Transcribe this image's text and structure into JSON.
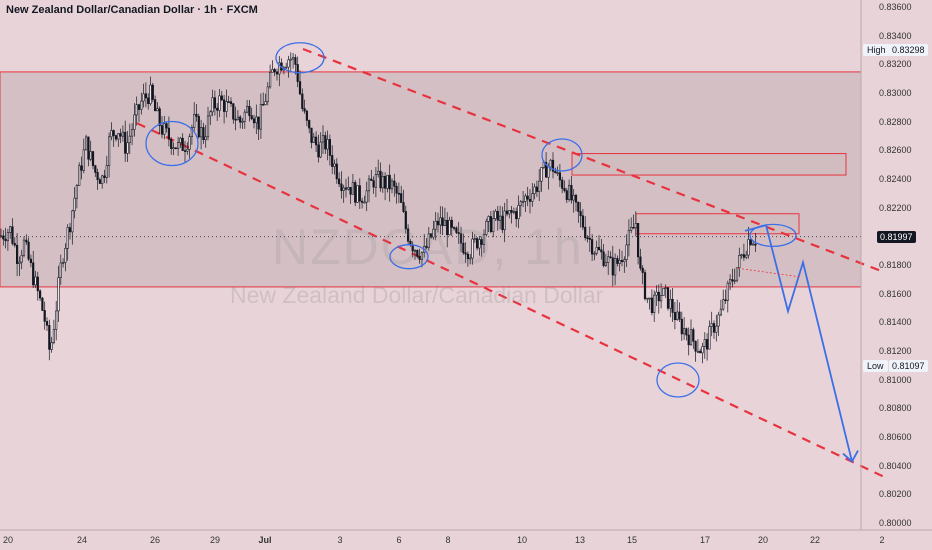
{
  "header": {
    "title": "New Zealand Dollar/Canadian Dollar · 1h · FXCM"
  },
  "watermark": {
    "symbol": "NZDCAD, 1h",
    "name": "New Zealand Dollar/Canadian Dollar"
  },
  "price_tags": {
    "high_label": "High",
    "high_value": "0.83298",
    "low_label": "Low",
    "low_value": "0.81097",
    "current_value": "0.81997"
  },
  "colors": {
    "background": "#e8d4d8",
    "zone": "#cdb9bd",
    "zone_border": "#e8333f",
    "trend_line": "#e8333f",
    "projection": "#3b6fe8",
    "candle_up": "#131722",
    "candle_down": "#131722",
    "current_tag": "#131722"
  },
  "chart_data": {
    "type": "candlestick",
    "symbol": "NZDCAD",
    "timeframe": "1h",
    "ylim": [
      0.7995,
      0.8365
    ],
    "y_ticks": [
      "0.80000",
      "0.80200",
      "0.80400",
      "0.80600",
      "0.80800",
      "0.81000",
      "0.81200",
      "0.81400",
      "0.81600",
      "0.81800",
      "0.82000",
      "0.82200",
      "0.82400",
      "0.82600",
      "0.82800",
      "0.83000",
      "0.83200",
      "0.83400",
      "0.83600"
    ],
    "x_ticks": [
      "20",
      "24",
      "26",
      "29",
      "Jul",
      "3",
      "6",
      "8",
      "10",
      "13",
      "15",
      "17",
      "20",
      "22",
      "2"
    ],
    "price_path": [
      [
        0,
        0.82
      ],
      [
        10,
        0.8205
      ],
      [
        18,
        0.8185
      ],
      [
        24,
        0.8195
      ],
      [
        32,
        0.8175
      ],
      [
        38,
        0.816
      ],
      [
        44,
        0.8145
      ],
      [
        50,
        0.8118
      ],
      [
        56,
        0.815
      ],
      [
        62,
        0.8185
      ],
      [
        70,
        0.821
      ],
      [
        78,
        0.824
      ],
      [
        86,
        0.8265
      ],
      [
        95,
        0.8245
      ],
      [
        103,
        0.824
      ],
      [
        110,
        0.827
      ],
      [
        118,
        0.8275
      ],
      [
        126,
        0.8262
      ],
      [
        134,
        0.828
      ],
      [
        142,
        0.8295
      ],
      [
        150,
        0.83
      ],
      [
        156,
        0.8285
      ],
      [
        162,
        0.8275
      ],
      [
        170,
        0.8268
      ],
      [
        178,
        0.8262
      ],
      [
        186,
        0.8265
      ],
      [
        194,
        0.828
      ],
      [
        204,
        0.827
      ],
      [
        212,
        0.829
      ],
      [
        220,
        0.8295
      ],
      [
        230,
        0.8288
      ],
      [
        240,
        0.828
      ],
      [
        250,
        0.8292
      ],
      [
        258,
        0.8278
      ],
      [
        266,
        0.8298
      ],
      [
        274,
        0.8318
      ],
      [
        282,
        0.8322
      ],
      [
        290,
        0.8325
      ],
      [
        296,
        0.832
      ],
      [
        302,
        0.829
      ],
      [
        310,
        0.827
      ],
      [
        318,
        0.8262
      ],
      [
        326,
        0.8265
      ],
      [
        334,
        0.825
      ],
      [
        342,
        0.8238
      ],
      [
        350,
        0.8235
      ],
      [
        358,
        0.8228
      ],
      [
        366,
        0.823
      ],
      [
        374,
        0.824
      ],
      [
        382,
        0.8238
      ],
      [
        392,
        0.8235
      ],
      [
        400,
        0.8225
      ],
      [
        406,
        0.8205
      ],
      [
        412,
        0.8195
      ],
      [
        418,
        0.819
      ],
      [
        424,
        0.8188
      ],
      [
        430,
        0.8198
      ],
      [
        438,
        0.821
      ],
      [
        446,
        0.8208
      ],
      [
        454,
        0.82
      ],
      [
        462,
        0.8195
      ],
      [
        470,
        0.819
      ],
      [
        478,
        0.8198
      ],
      [
        486,
        0.8205
      ],
      [
        494,
        0.8212
      ],
      [
        502,
        0.821
      ],
      [
        510,
        0.8215
      ],
      [
        518,
        0.8218
      ],
      [
        526,
        0.8228
      ],
      [
        534,
        0.8232
      ],
      [
        540,
        0.824
      ],
      [
        546,
        0.8248
      ],
      [
        552,
        0.825
      ],
      [
        558,
        0.824
      ],
      [
        564,
        0.8236
      ],
      [
        570,
        0.8228
      ],
      [
        576,
        0.8218
      ],
      [
        582,
        0.821
      ],
      [
        588,
        0.82
      ],
      [
        594,
        0.8192
      ],
      [
        600,
        0.8188
      ],
      [
        606,
        0.8185
      ],
      [
        612,
        0.8178
      ],
      [
        618,
        0.8182
      ],
      [
        624,
        0.819
      ],
      [
        630,
        0.82
      ],
      [
        636,
        0.821
      ],
      [
        640,
        0.8175
      ],
      [
        644,
        0.8165
      ],
      [
        648,
        0.8155
      ],
      [
        654,
        0.8152
      ],
      [
        660,
        0.816
      ],
      [
        666,
        0.8158
      ],
      [
        672,
        0.815
      ],
      [
        678,
        0.814
      ],
      [
        684,
        0.8135
      ],
      [
        690,
        0.813
      ],
      [
        696,
        0.8125
      ],
      [
        702,
        0.812
      ],
      [
        708,
        0.8128
      ],
      [
        714,
        0.8138
      ],
      [
        720,
        0.8145
      ],
      [
        726,
        0.8158
      ],
      [
        732,
        0.817
      ],
      [
        738,
        0.818
      ],
      [
        744,
        0.819
      ],
      [
        750,
        0.82
      ],
      [
        756,
        0.8198
      ]
    ],
    "zones": [
      {
        "x1": 0,
        "x2": 861,
        "y1": 0.83148,
        "y2": 0.81647
      },
      {
        "x1": 572,
        "x2": 846,
        "y1": 0.82578,
        "y2": 0.82428
      },
      {
        "x1": 636,
        "x2": 799,
        "y1": 0.82158,
        "y2": 0.82018
      }
    ],
    "trend_lines": [
      {
        "p1": [
          303,
          0.83308
        ],
        "p2": [
          885,
          0.81748
        ]
      },
      {
        "p1": [
          137,
          0.8279
        ],
        "p2": [
          885,
          0.80318
        ]
      }
    ],
    "projection_path": [
      [
        745,
        0.82038
      ],
      [
        766,
        0.82078
      ],
      [
        788,
        0.81477
      ],
      [
        803,
        0.81818
      ],
      [
        852,
        0.80428
      ]
    ],
    "circles": [
      {
        "cx": 300,
        "cy": 0.83247,
        "rx": 24,
        "ry": 15
      },
      {
        "cx": 172,
        "cy": 0.82648,
        "rx": 26,
        "ry": 22
      },
      {
        "cx": 409,
        "cy": 0.81858,
        "rx": 19,
        "ry": 12
      },
      {
        "cx": 562,
        "cy": 0.82568,
        "rx": 20,
        "ry": 16
      },
      {
        "cx": 773,
        "cy": 0.82007,
        "rx": 23,
        "ry": 11
      },
      {
        "cx": 678,
        "cy": 0.80997,
        "rx": 21,
        "ry": 17
      }
    ]
  }
}
